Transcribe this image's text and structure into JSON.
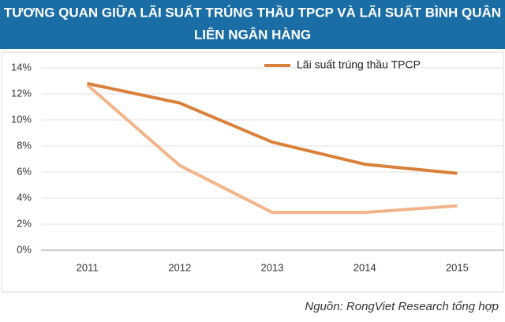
{
  "chart_data": {
    "type": "line",
    "title": "TƯƠNG QUAN GIỮA LÃI SUẤT TRÚNG THẦU TPCP VÀ LÃI SUẤT BÌNH QUÂN",
    "subtitle": "LIÊN NGÂN HÀNG",
    "source": "Nguồn: RongViet Research tổng hợp",
    "categories": [
      "2011",
      "2012",
      "2013",
      "2014",
      "2015"
    ],
    "series": [
      {
        "name": "Lãi suất trúng thầu TPCP",
        "color": "#d9803a",
        "values": [
          12.8,
          11.3,
          8.3,
          6.6,
          5.9
        ]
      },
      {
        "color": "#f2b48a",
        "values": [
          12.7,
          6.5,
          2.9,
          2.9,
          3.4
        ]
      }
    ],
    "ylim": [
      0,
      14
    ],
    "yticks": [
      {
        "value": 0,
        "label": "0%"
      },
      {
        "value": 2,
        "label": "2%"
      },
      {
        "value": 4,
        "label": "4%"
      },
      {
        "value": 6,
        "label": "6%"
      },
      {
        "value": 8,
        "label": "8%"
      },
      {
        "value": 10,
        "label": "10%"
      },
      {
        "value": 12,
        "label": "12%"
      },
      {
        "value": 14,
        "label": "14%"
      }
    ],
    "grid": true
  }
}
